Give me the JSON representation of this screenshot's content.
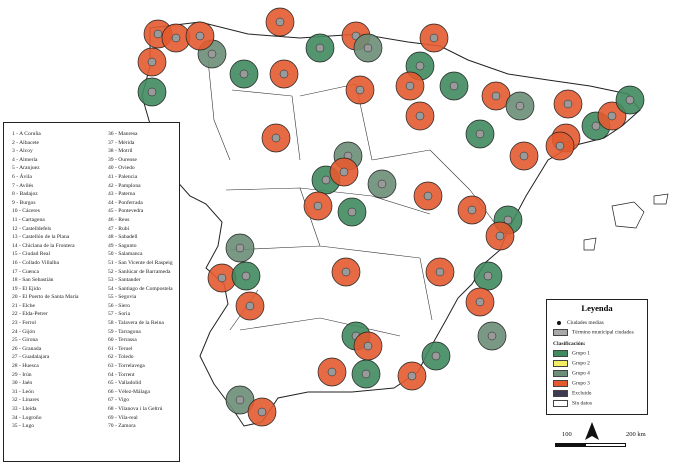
{
  "index": {
    "col1": [
      "1 - A Coruña",
      "2 - Albacete",
      "3 - Alcoy",
      "4 - Almería",
      "5 - Aranjuez",
      "6 - Ávila",
      "7 - Avilés",
      "8 - Badajoz",
      "9 - Burgos",
      "10 - Cáceres",
      "11 - Cartagena",
      "12 - Castelldefels",
      "13 - Castellón de la Plana",
      "14 - Chiclana de la Frontera",
      "15 - Ciudad Real",
      "16 - Collado Villalba",
      "17 - Cuenca",
      "18 - San Sebastián",
      "19 - El Ejido",
      "20 - El Puerto de Santa María",
      "21 - Elche",
      "22 - Elda-Petrer",
      "23 - Ferrol",
      "24 - Gijón",
      "25 - Girona",
      "26 - Granada",
      "27 - Guadalajara",
      "28 - Huesca",
      "29 - Irún",
      "30 - Jaén",
      "31 - León",
      "32 - Linares",
      "33 - Lleida",
      "34 - Logroño",
      "35 - Lugo"
    ],
    "col2": [
      "36 - Manresa",
      "37 - Mérida",
      "38 - Motril",
      "39 - Ourense",
      "40 - Oviedo",
      "41 - Palencia",
      "42 - Pamplona",
      "43 - Paterna",
      "44 - Ponferrada",
      "45 - Pontevedra",
      "46 - Reus",
      "47 - Rubí",
      "48 - Sabadell",
      "49 - Sagunto",
      "50 - Salamanca",
      "51 - San Vicente del Raspeig",
      "52 - Sanlúcar de Barrameda",
      "53 - Santander",
      "54 - Santiago de Compostela",
      "55 - Segovia",
      "56 - Siero",
      "57 - Soria",
      "58 - Talavera de la Reina",
      "59 - Tarragona",
      "60 - Terrassa",
      "61 - Teruel",
      "62 - Toledo",
      "63 - Torrelavega",
      "64 - Torrent",
      "65 - Valladolid",
      "66 - Vélez-Málaga",
      "67 - Vigo",
      "68 - Vilanova i la Geltrú",
      "69 - Vila-real",
      "70 - Zamora"
    ]
  },
  "legend": {
    "title": "Leyenda",
    "ciudades_medias": "Ciudades medias",
    "termino_municipal": "Término municipal ciudades",
    "clasificacion_label": "Clasificación:",
    "items": [
      {
        "label": "Grupo 1",
        "color": "#3f8a5e"
      },
      {
        "label": "Grupo 2",
        "color": "#f3ee62"
      },
      {
        "label": "Grupo 4",
        "color": "#6b8e78"
      },
      {
        "label": "Grupo 3",
        "color": "#e35a2f"
      },
      {
        "label": "Excluido",
        "color": "#3f3a52"
      },
      {
        "label": "Sin datos",
        "color": "#ffffff"
      }
    ]
  },
  "scale": {
    "left_label": "100",
    "right_label": "200 km"
  },
  "north_arrow": "north-arrow-icon",
  "colors": {
    "grupo1": "#3f8a5e",
    "grupo2": "#f3ee62",
    "grupo3": "#e35a2f",
    "grupo4": "#6b8e78",
    "excluido": "#3f3a52",
    "border": "#222222"
  }
}
